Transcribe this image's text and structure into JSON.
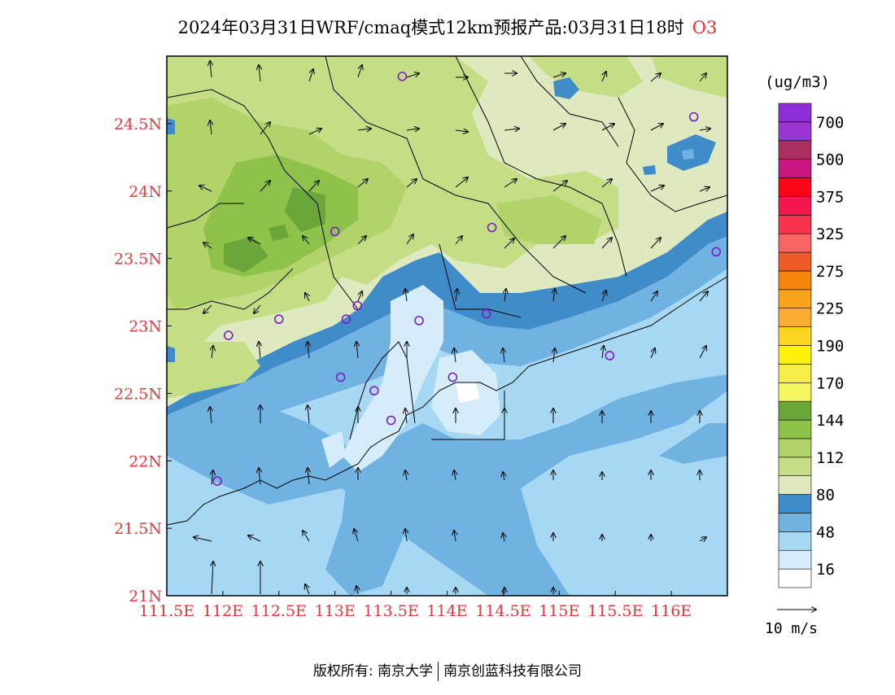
{
  "title": {
    "main": "2024年03月31日WRF/cmaq模式12km预报产品:03月31日18时",
    "species": "O3"
  },
  "map": {
    "lon_range": [
      111.5,
      116.5
    ],
    "lat_range": [
      21.0,
      25.0
    ],
    "x_ticks": [
      "111.5E",
      "112E",
      "112.5E",
      "113E",
      "113.5E",
      "114E",
      "114.5E",
      "115E",
      "115.5E",
      "116E"
    ],
    "y_ticks": [
      "21N",
      "21.5N",
      "22N",
      "22.5N",
      "23N",
      "23.5N",
      "24N",
      "24.5N"
    ],
    "station_markers": [
      {
        "lon": 113.6,
        "lat": 24.85
      },
      {
        "lon": 116.2,
        "lat": 24.55
      },
      {
        "lon": 113.0,
        "lat": 23.7
      },
      {
        "lon": 114.4,
        "lat": 23.73
      },
      {
        "lon": 116.4,
        "lat": 23.55
      },
      {
        "lon": 112.5,
        "lat": 23.05
      },
      {
        "lon": 112.05,
        "lat": 22.93
      },
      {
        "lon": 113.1,
        "lat": 23.05
      },
      {
        "lon": 113.2,
        "lat": 23.15
      },
      {
        "lon": 113.75,
        "lat": 23.04
      },
      {
        "lon": 114.35,
        "lat": 23.09
      },
      {
        "lon": 115.45,
        "lat": 22.78
      },
      {
        "lon": 113.05,
        "lat": 22.62
      },
      {
        "lon": 113.35,
        "lat": 22.52
      },
      {
        "lon": 113.5,
        "lat": 22.3
      },
      {
        "lon": 114.05,
        "lat": 22.62
      },
      {
        "lon": 111.95,
        "lat": 21.85
      }
    ]
  },
  "legend": {
    "unit": "(ug/m3)",
    "labels": [
      "16",
      "48",
      "80",
      "112",
      "144",
      "170",
      "190",
      "225",
      "275",
      "325",
      "375",
      "500",
      "700"
    ],
    "colors": [
      "#ffffff",
      "#d5ecfa",
      "#a6d8f4",
      "#70b2e2",
      "#3f8cc8",
      "#dfe9bf",
      "#c5dd84",
      "#b1d36a",
      "#8fc24a",
      "#6aa63a",
      "#f4f660",
      "#f6ee48",
      "#fff10a",
      "#fdd420",
      "#f9ad33",
      "#f9a41b",
      "#f6850c",
      "#ee5a2a",
      "#f66464",
      "#f6344d",
      "#f51650",
      "#fa0418",
      "#c81682",
      "#aa2e5f",
      "#9a34d2",
      "#8f2ed8"
    ]
  },
  "wind_reference": "10 m/s",
  "footer": {
    "left": "版权所有: 南京大学",
    "right": "南京创蓝科技有限公司"
  }
}
